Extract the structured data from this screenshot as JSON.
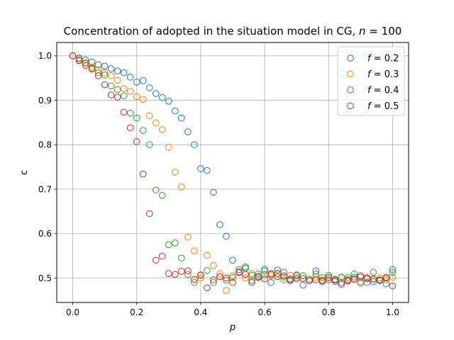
{
  "chart_data": {
    "type": "scatter",
    "title": "Concentration of adopted in the situation model in CG, n = 100",
    "title_parts": {
      "prefix": "Concentration of adopted in the situation model in CG, ",
      "var": "n",
      "eq": " = 100"
    },
    "xlabel": "p",
    "ylabel": "c",
    "xlim": [
      -0.05,
      1.05
    ],
    "ylim": [
      0.445,
      1.03
    ],
    "xticks": [
      0.0,
      0.2,
      0.4,
      0.6,
      0.8,
      1.0
    ],
    "xtick_labels": [
      "0.0",
      "0.2",
      "0.4",
      "0.6",
      "0.8",
      "1.0"
    ],
    "yticks": [
      0.5,
      0.6,
      0.7,
      0.8,
      0.9,
      1.0
    ],
    "ytick_labels": [
      "0.5",
      "0.6",
      "0.7",
      "0.8",
      "0.9",
      "1.0"
    ],
    "grid": true,
    "legend_position": "top-right",
    "marker": "open-circle",
    "x": [
      0.0,
      0.02,
      0.04,
      0.06,
      0.08,
      0.1,
      0.12,
      0.14,
      0.16,
      0.18,
      0.2,
      0.22,
      0.24,
      0.26,
      0.28,
      0.3,
      0.32,
      0.34,
      0.36,
      0.38,
      0.4,
      0.42,
      0.44,
      0.46,
      0.48,
      0.5,
      0.52,
      0.54,
      0.56,
      0.58,
      0.6,
      0.62,
      0.64,
      0.66,
      0.68,
      0.7,
      0.72,
      0.74,
      0.76,
      0.78,
      0.8,
      0.82,
      0.84,
      0.86,
      0.88,
      0.9,
      0.92,
      0.94,
      0.96,
      0.98,
      1.0
    ],
    "series": [
      {
        "name": "f = 0.2",
        "var": "f",
        "eq": " = 0.2",
        "color": "#1f77b4",
        "values": [
          1.0,
          0.995,
          0.991,
          0.986,
          0.98,
          0.977,
          0.971,
          0.966,
          0.962,
          0.952,
          0.941,
          0.944,
          0.928,
          0.915,
          0.906,
          0.898,
          0.876,
          0.86,
          0.829,
          0.8,
          0.746,
          0.742,
          0.693,
          0.62,
          0.594,
          0.54,
          0.519,
          0.522,
          0.494,
          0.509,
          0.52,
          0.49,
          0.518,
          0.513,
          0.498,
          0.507,
          0.484,
          0.494,
          0.516,
          0.492,
          0.502,
          0.492,
          0.49,
          0.495,
          0.502,
          0.491,
          0.49,
          0.492,
          0.494,
          0.487,
          0.519
        ]
      },
      {
        "name": "f = 0.3",
        "var": "f",
        "eq": " = 0.3",
        "color": "#ff7f0e",
        "values": [
          1.0,
          0.993,
          0.985,
          0.975,
          0.968,
          0.962,
          0.955,
          0.945,
          0.926,
          0.92,
          0.908,
          0.902,
          0.865,
          0.849,
          0.834,
          0.794,
          0.738,
          0.705,
          0.592,
          0.561,
          0.5,
          0.551,
          0.528,
          0.51,
          0.472,
          0.505,
          0.512,
          0.5,
          0.51,
          0.503,
          0.508,
          0.505,
          0.511,
          0.502,
          0.506,
          0.501,
          0.505,
          0.497,
          0.502,
          0.496,
          0.5,
          0.496,
          0.501,
          0.497,
          0.498,
          0.488,
          0.501,
          0.497,
          0.5,
          0.496,
          0.502
        ]
      },
      {
        "name": "f = 0.4",
        "var": "f",
        "eq": " = 0.4",
        "color": "#2ca02c",
        "values": [
          1.0,
          0.99,
          0.983,
          0.972,
          0.962,
          0.957,
          0.932,
          0.924,
          0.91,
          0.871,
          0.86,
          0.832,
          0.8,
          0.698,
          0.686,
          0.575,
          0.579,
          0.545,
          0.508,
          0.49,
          0.506,
          0.517,
          0.49,
          0.503,
          0.495,
          0.501,
          0.514,
          0.525,
          0.506,
          0.504,
          0.516,
          0.508,
          0.509,
          0.496,
          0.496,
          0.505,
          0.505,
          0.497,
          0.509,
          0.501,
          0.506,
          0.495,
          0.502,
          0.501,
          0.509,
          0.502,
          0.498,
          0.513,
          0.496,
          0.502,
          0.513
        ]
      },
      {
        "name": "f = 0.5",
        "var": "f",
        "eq": " = 0.5",
        "color": "#d62728",
        "values": [
          1.0,
          0.989,
          0.978,
          0.97,
          0.955,
          0.935,
          0.912,
          0.907,
          0.873,
          0.838,
          0.807,
          0.734,
          0.645,
          0.54,
          0.549,
          0.51,
          0.508,
          0.515,
          0.516,
          0.497,
          0.507,
          0.478,
          0.496,
          0.503,
          0.5,
          0.49,
          0.513,
          0.508,
          0.49,
          0.501,
          0.498,
          0.51,
          0.503,
          0.505,
          0.494,
          0.498,
          0.499,
          0.494,
          0.496,
          0.494,
          0.496,
          0.497,
          0.486,
          0.493,
          0.497,
          0.505,
          0.5,
          0.498,
          0.495,
          0.5,
          0.482
        ]
      }
    ]
  }
}
